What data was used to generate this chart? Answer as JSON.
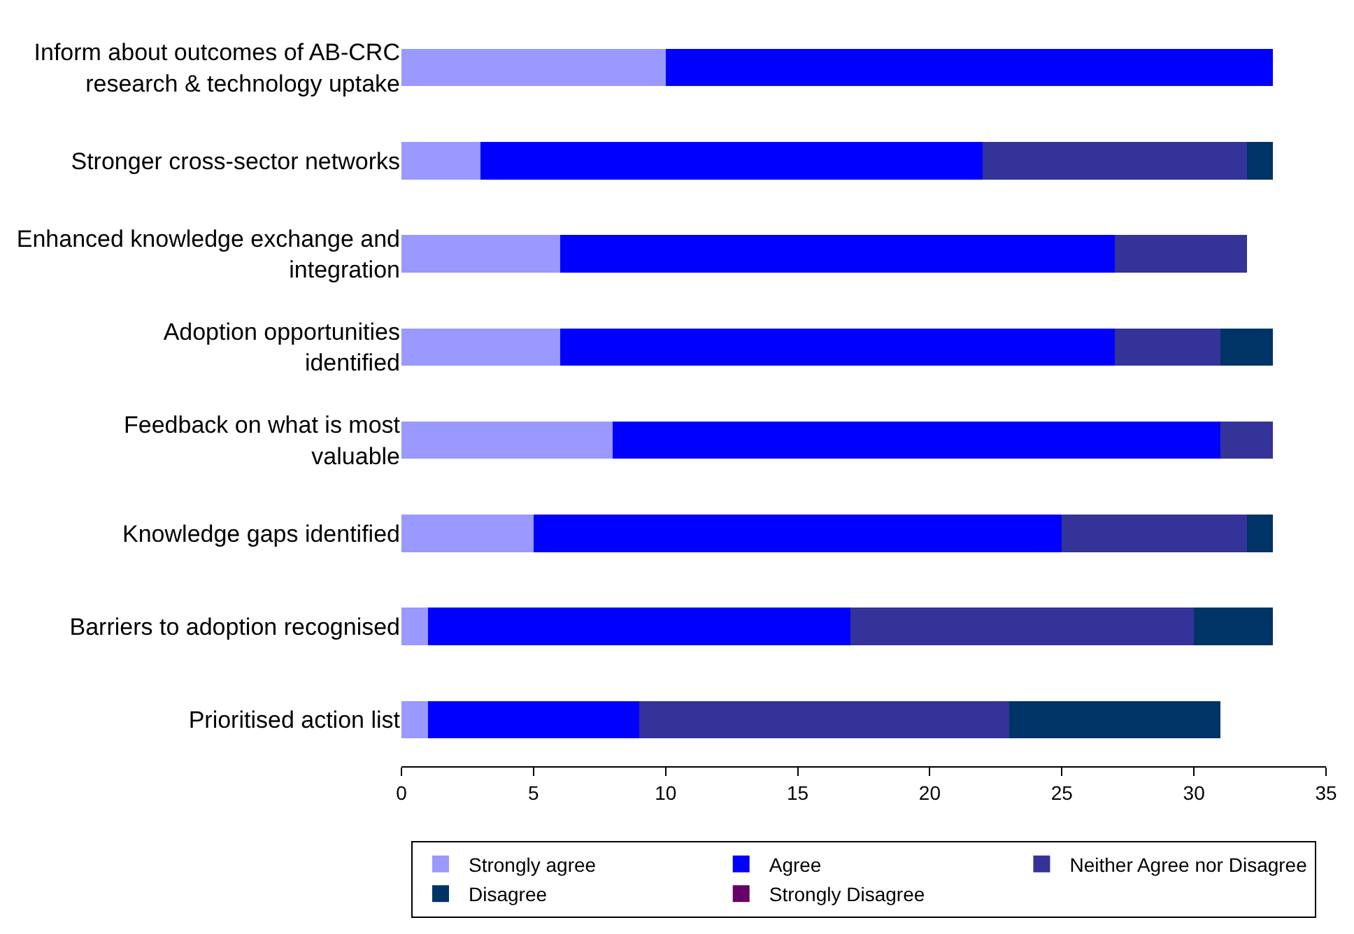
{
  "chart_data": {
    "type": "bar",
    "orientation": "horizontal",
    "stacked": true,
    "categories": [
      "Inform about outcomes of AB-CRC research & technology uptake",
      "Stronger cross-sector networks",
      "Enhanced knowledge exchange and integration",
      "Adoption opportunities identified",
      "Feedback on what is most valuable",
      "Knowledge gaps identified",
      "Barriers to adoption recognised",
      "Prioritised action list"
    ],
    "series": [
      {
        "name": "Strongly agree",
        "color": "#9999ff",
        "values": [
          10,
          3,
          6,
          6,
          8,
          5,
          1,
          1
        ]
      },
      {
        "name": "Agree",
        "color": "#0000ff",
        "values": [
          23,
          19,
          21,
          21,
          23,
          20,
          16,
          8
        ]
      },
      {
        "name": "Neither Agree nor Disagree",
        "color": "#333399",
        "values": [
          0,
          10,
          5,
          4,
          2,
          7,
          13,
          14
        ]
      },
      {
        "name": "Disagree",
        "color": "#003366",
        "values": [
          0,
          1,
          0,
          2,
          0,
          1,
          3,
          8
        ]
      },
      {
        "name": "Strongly Disagree",
        "color": "#660066",
        "values": [
          0,
          0,
          0,
          0,
          0,
          0,
          0,
          0
        ]
      }
    ],
    "xlim": [
      0,
      35
    ],
    "xticks": [
      0,
      5,
      10,
      15,
      20,
      25,
      30,
      35
    ],
    "grid": false,
    "legend": "bottom"
  }
}
